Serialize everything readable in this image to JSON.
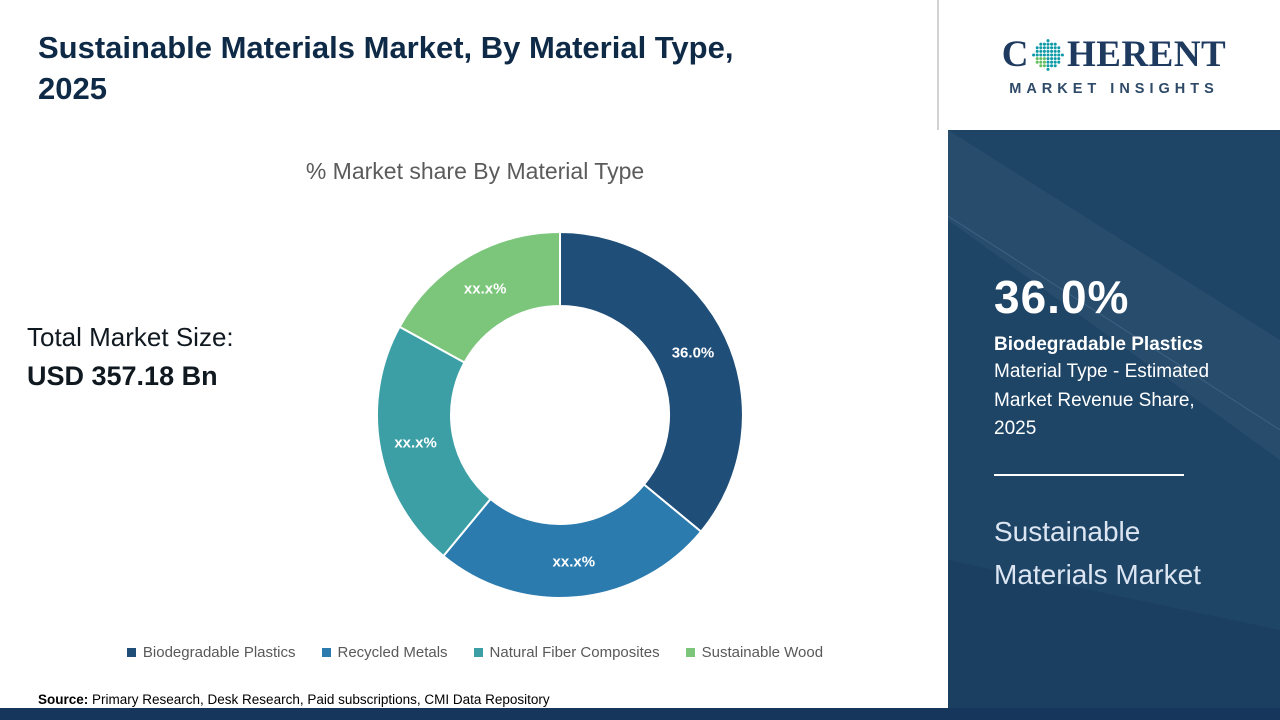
{
  "header": {
    "title_line1": "Sustainable Materials Market, By Material Type,",
    "title_line2": "2025"
  },
  "logo": {
    "brand_c": "C",
    "brand_rest": "HERENT",
    "brand_sub": "MARKET INSIGHTS"
  },
  "left": {
    "total_label": "Total Market Size:",
    "total_value": "USD 357.18 Bn"
  },
  "chart_data": {
    "type": "pie",
    "donut": true,
    "title": "% Market share By Material Type",
    "legend_position": "bottom",
    "segments": [
      {
        "label": "Biodegradable Plastics",
        "value": 36.0,
        "display": "36.0%",
        "color": "#1F4E79"
      },
      {
        "label": "Recycled Metals",
        "value": 25.0,
        "display": "xx.x%",
        "color": "#2B7BAE"
      },
      {
        "label": "Natural Fiber Composites",
        "value": 22.0,
        "display": "xx.x%",
        "color": "#3B9FA5"
      },
      {
        "label": "Sustainable Wood",
        "value": 17.0,
        "display": "xx.x%",
        "color": "#7CC67C"
      }
    ]
  },
  "sidebar": {
    "highlight_value": "36.0%",
    "highlight_label": "Biodegradable Plastics",
    "highlight_desc": "Material Type - Estimated Market Revenue Share, 2025",
    "panel_title": "Sustainable Materials Market"
  },
  "footer": {
    "source_label": "Source:",
    "source_text": " Primary Research, Desk Research, Paid subscriptions, CMI Data Repository"
  },
  "colors": {
    "panel_navy": "#1E4466",
    "bottom_bar_navy": "#16365C",
    "title_navy": "#0E2A47",
    "chart_title_gray": "#5B5B5B"
  }
}
